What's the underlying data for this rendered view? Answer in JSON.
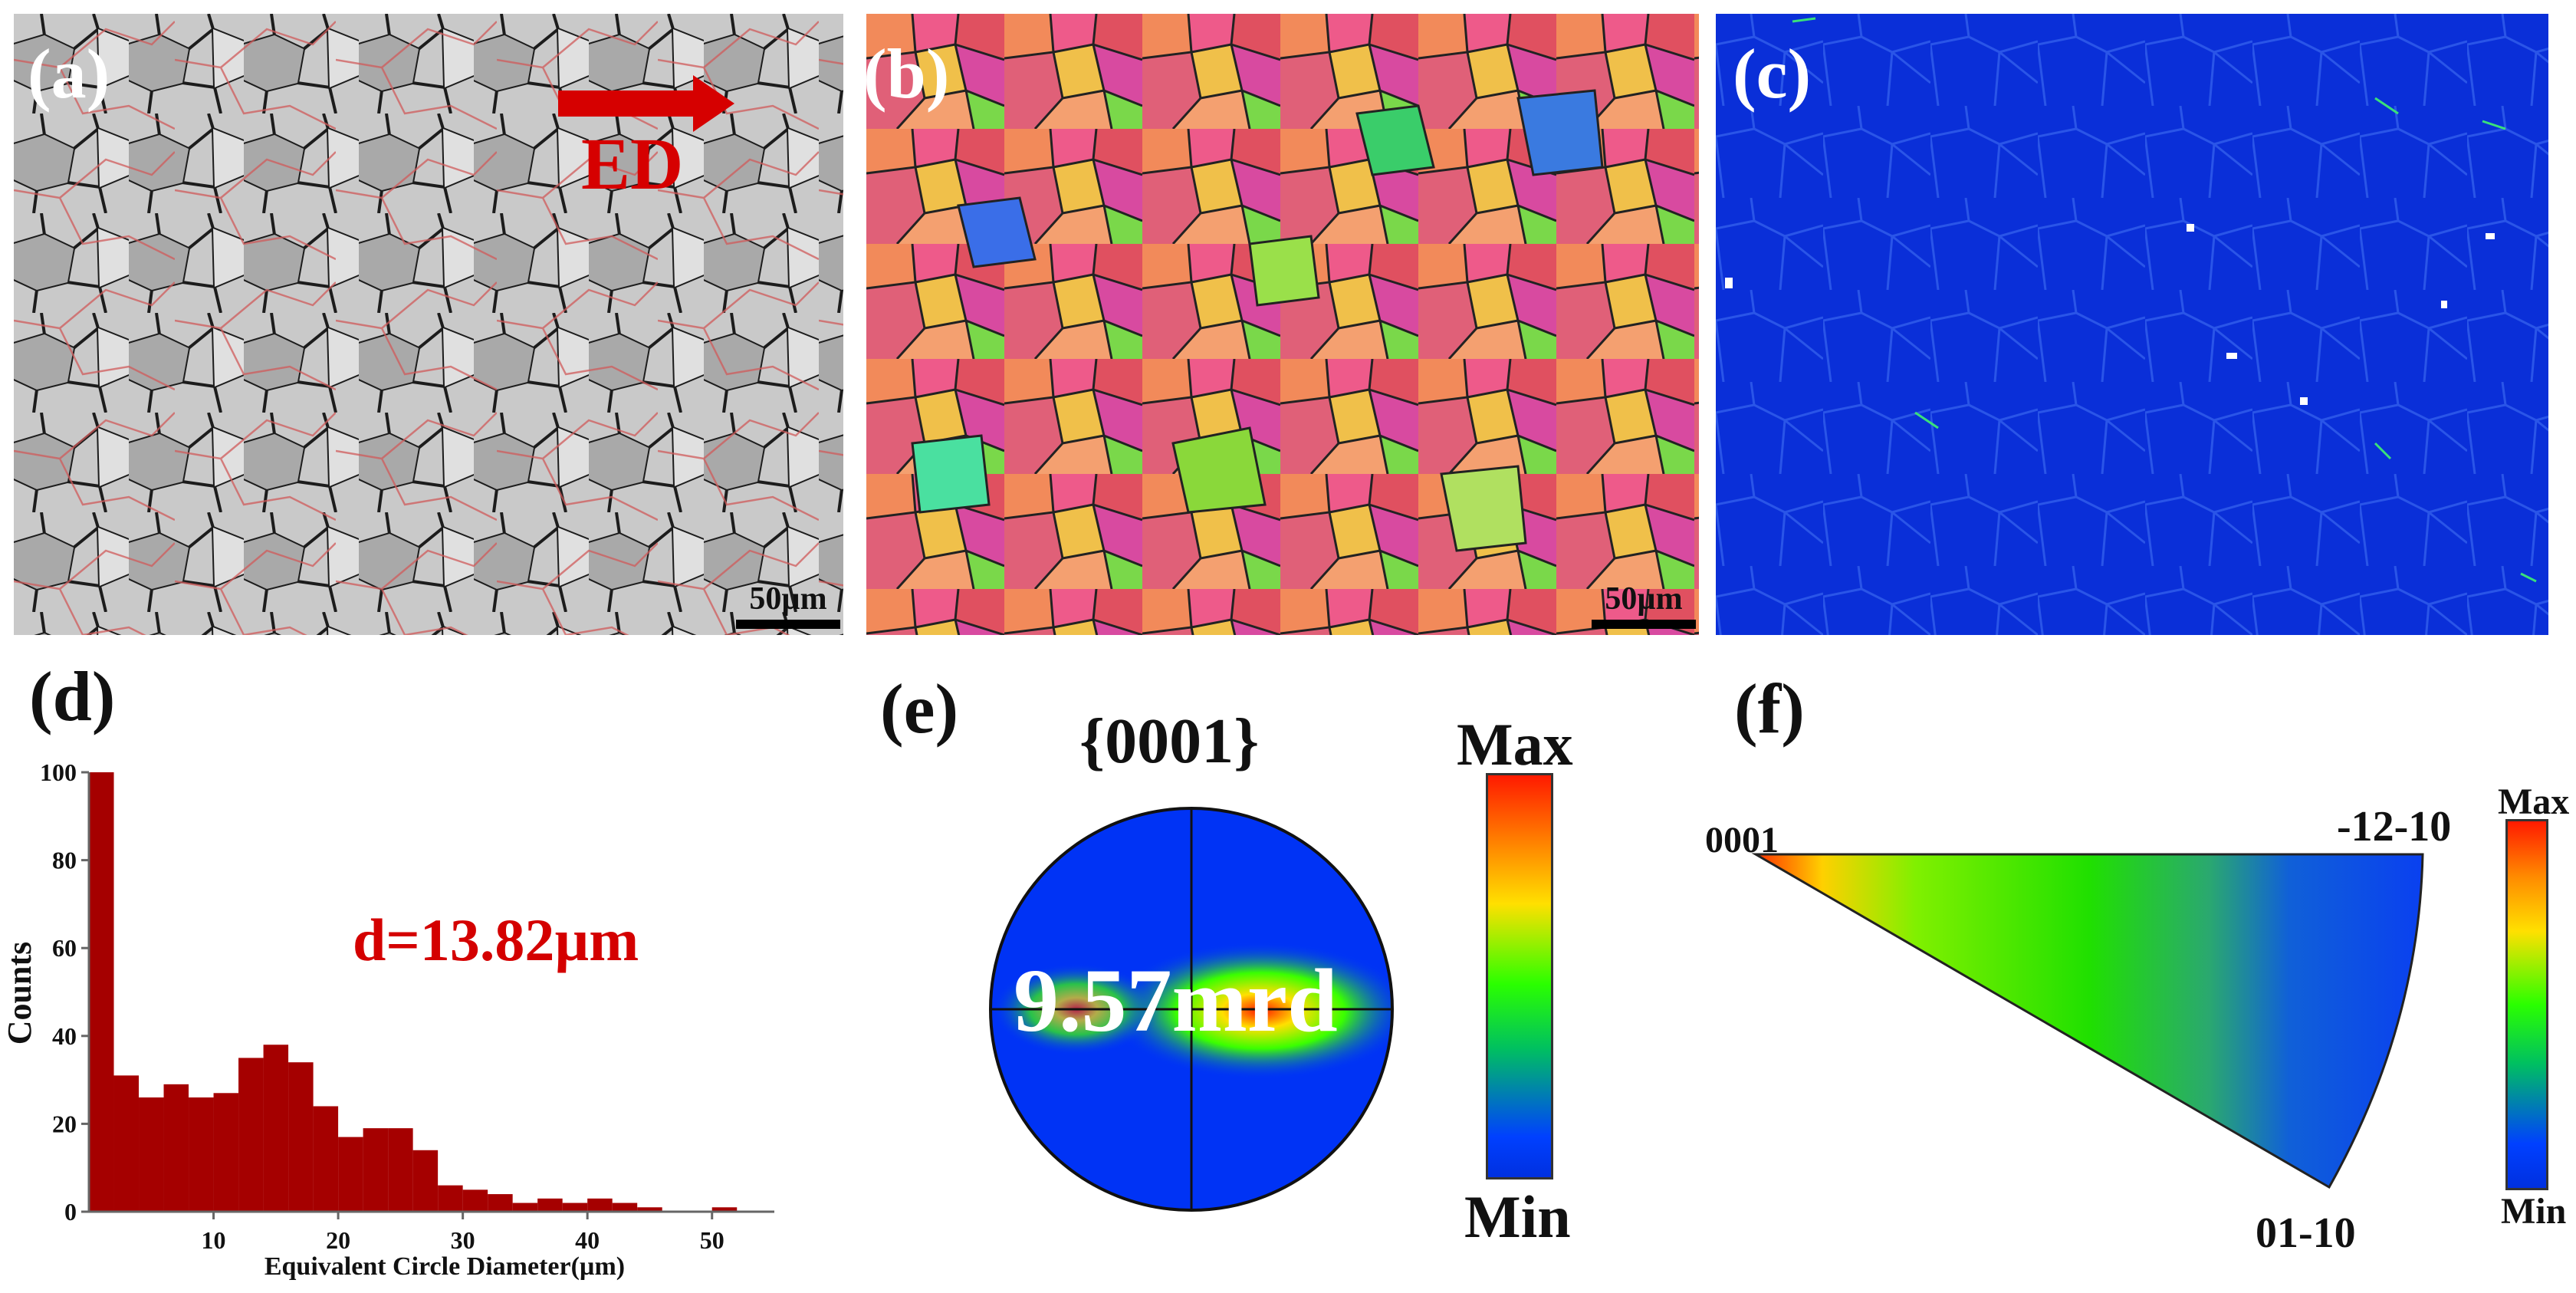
{
  "panels": {
    "a": {
      "label": "(a)",
      "direction_label": "ED",
      "scale_bar": "50µm"
    },
    "b": {
      "label": "(b)",
      "scale_bar": "50µm"
    },
    "c": {
      "label": "(c)"
    },
    "d": {
      "label": "(d)"
    },
    "e": {
      "label": "(e)",
      "pole_figure_title": "{0001}",
      "max_intensity": "9.57mrd",
      "legend_max": "Max",
      "legend_min": "Min"
    },
    "f": {
      "label": "(f)",
      "corner_0001": "0001",
      "corner_12_10": "-12-10",
      "corner_01_10": "01-10",
      "legend_max": "Max",
      "legend_min": "Min"
    }
  },
  "colors": {
    "bar": "#a50000",
    "annotation": "#d40000",
    "arrow": "#d60000",
    "kam_bg": "#0a2fd8"
  },
  "chart_data": {
    "type": "bar",
    "title": "",
    "annotation": "d=13.82µm",
    "xlabel": "Equivalent Circle Diameter(µm)",
    "ylabel": "Counts",
    "xlim": [
      0,
      55
    ],
    "ylim": [
      0,
      100
    ],
    "xticks": [
      "10",
      "20",
      "30",
      "40",
      "50"
    ],
    "yticks": [
      "0",
      "20",
      "40",
      "60",
      "80",
      "100"
    ],
    "bin_width": 2,
    "bins": [
      {
        "x": 0,
        "value": 100
      },
      {
        "x": 2,
        "value": 31
      },
      {
        "x": 4,
        "value": 26
      },
      {
        "x": 6,
        "value": 29
      },
      {
        "x": 8,
        "value": 26
      },
      {
        "x": 10,
        "value": 27
      },
      {
        "x": 12,
        "value": 35
      },
      {
        "x": 14,
        "value": 38
      },
      {
        "x": 16,
        "value": 34
      },
      {
        "x": 18,
        "value": 24
      },
      {
        "x": 20,
        "value": 17
      },
      {
        "x": 22,
        "value": 19
      },
      {
        "x": 24,
        "value": 19
      },
      {
        "x": 26,
        "value": 14
      },
      {
        "x": 28,
        "value": 6
      },
      {
        "x": 30,
        "value": 5
      },
      {
        "x": 32,
        "value": 4
      },
      {
        "x": 34,
        "value": 2
      },
      {
        "x": 36,
        "value": 3
      },
      {
        "x": 38,
        "value": 2
      },
      {
        "x": 40,
        "value": 3
      },
      {
        "x": 42,
        "value": 2
      },
      {
        "x": 44,
        "value": 1
      },
      {
        "x": 46,
        "value": 0
      },
      {
        "x": 48,
        "value": 0
      },
      {
        "x": 50,
        "value": 1
      }
    ]
  }
}
